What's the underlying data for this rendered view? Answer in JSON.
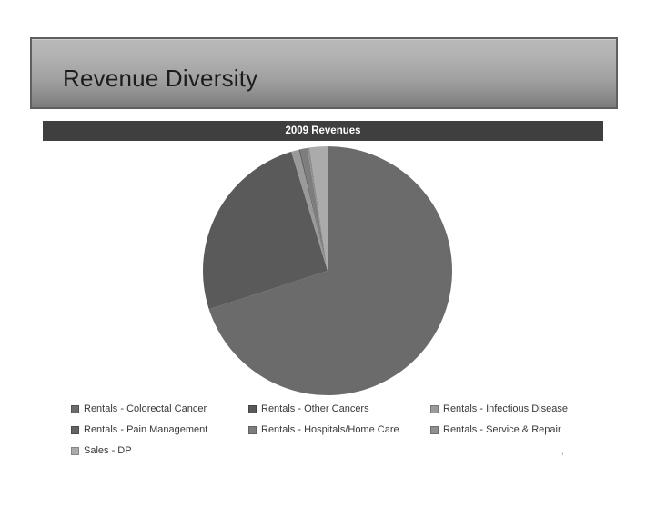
{
  "slide": {
    "title": "Revenue Diversity",
    "misc_mark": "’"
  },
  "chart_data": {
    "type": "pie",
    "title": "2009 Revenues",
    "categories": [
      "Rentals - Colorectal Cancer",
      "Rentals - Other Cancers",
      "Rentals - Infectious Disease",
      "Rentals - Pain Management",
      "Rentals - Hospitals/Home Care",
      "Rentals - Service & Repair",
      "Sales - DP"
    ],
    "values": [
      70.0,
      25.3,
      1.0,
      0.2,
      0.9,
      0.3,
      2.3
    ],
    "values_unit": "percent_estimated_from_pie_angles",
    "colors": [
      "#6b6b6b",
      "#5a5a5a",
      "#9a9a9a",
      "#636363",
      "#7d7d7d",
      "#8f8f8f",
      "#ababab"
    ],
    "header_bar_color": "#3f3f3f",
    "legend_position": "bottom",
    "start_angle_deg": 0,
    "direction": "clockwise",
    "data_labels": false,
    "gridlines": false
  }
}
